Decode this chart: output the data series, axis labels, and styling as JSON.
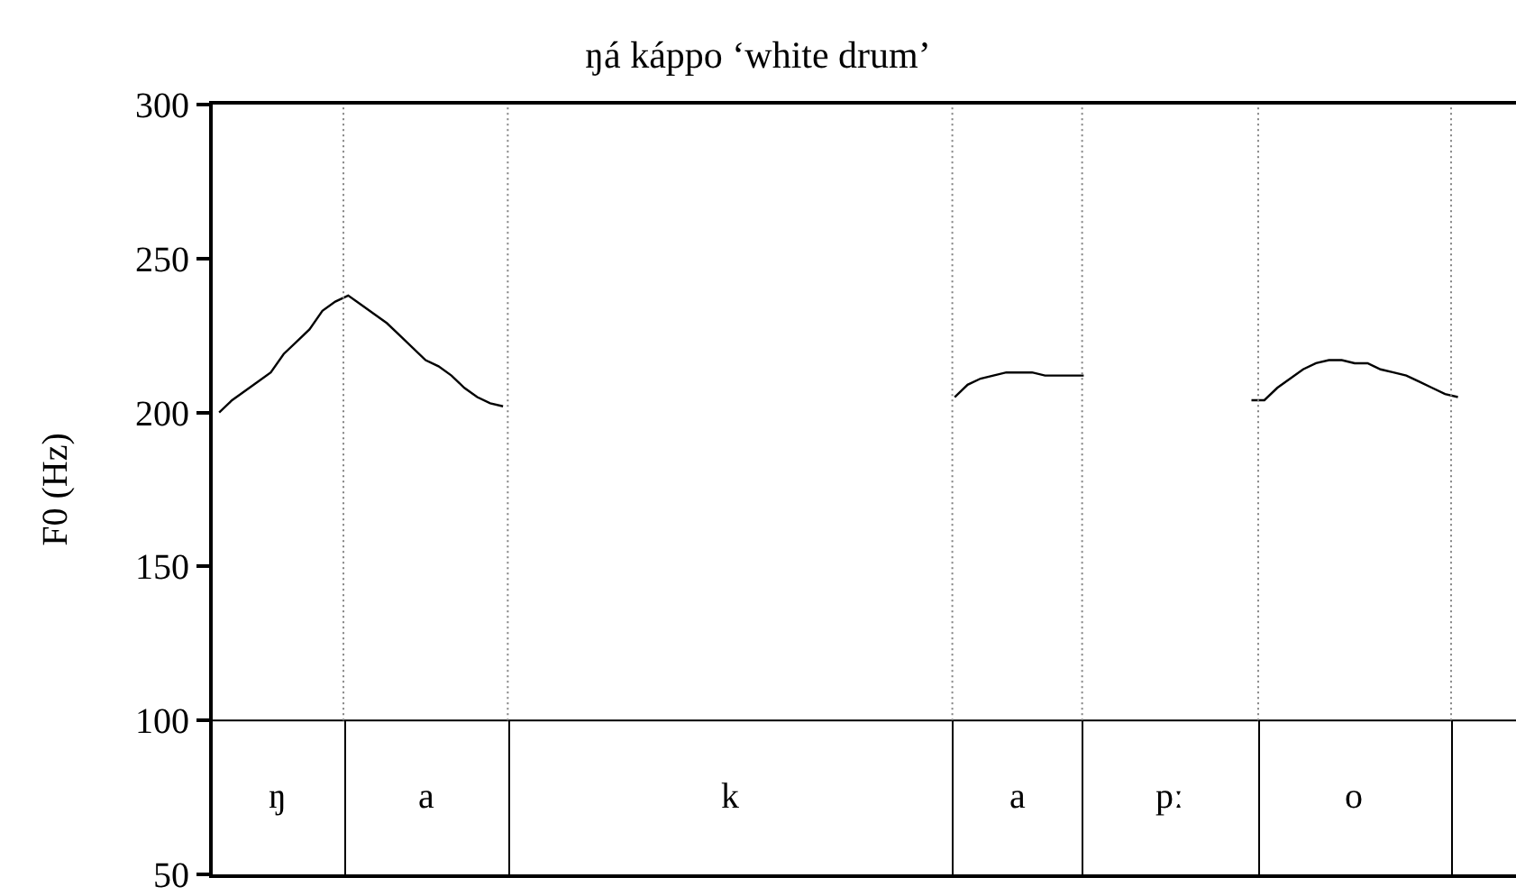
{
  "chart_data": {
    "type": "line",
    "title": "ŋá káppo ‘white drum’",
    "ylabel": "F0 (Hz)",
    "categories": [
      null,
      null,
      null,
      null,
      null,
      null,
      null,
      null,
      null,
      null,
      null,
      null,
      null,
      null,
      null,
      null,
      null,
      null,
      null,
      null,
      null,
      null,
      null,
      null,
      null,
      null,
      null,
      null,
      null,
      null,
      null,
      null,
      null,
      null,
      null,
      null,
      null,
      null,
      null,
      null,
      null,
      null,
      null,
      null,
      null,
      null,
      null,
      null,
      null,
      null,
      null,
      null,
      null,
      null,
      null,
      null,
      null,
      null,
      null,
      null,
      null,
      null,
      null,
      null,
      null,
      null,
      null,
      null,
      null,
      null,
      null,
      null,
      null,
      null,
      null,
      null,
      null,
      null,
      null,
      null,
      null,
      null,
      null,
      null,
      null,
      null,
      null,
      null,
      null,
      null,
      null,
      null,
      null,
      null,
      null,
      null,
      null,
      null,
      null,
      null,
      null
    ],
    "series": [
      {
        "color": "#000000",
        "values": [
          200,
          204,
          207,
          210,
          213,
          219,
          223,
          227,
          233,
          236,
          238,
          235,
          232,
          229,
          225,
          221,
          217,
          215,
          212,
          208,
          205,
          203,
          202,
          null,
          null,
          null,
          null,
          null,
          null,
          null,
          null,
          null,
          null,
          null,
          null,
          null,
          null,
          null,
          null,
          null,
          null,
          null,
          null,
          null,
          null,
          null,
          null,
          null,
          null,
          null,
          null,
          null,
          null,
          null,
          null,
          null,
          null,
          205,
          209,
          211,
          212,
          213,
          213,
          213,
          212,
          212,
          212,
          212,
          null,
          null,
          null,
          null,
          null,
          null,
          null,
          null,
          null,
          null,
          null,
          null,
          204,
          204,
          208,
          211,
          214,
          216,
          217,
          217,
          216,
          216,
          214,
          213,
          212,
          210,
          208,
          206,
          205,
          null,
          null,
          null,
          null
        ]
      }
    ],
    "ylim": [
      50,
      300
    ],
    "yticks": [
      50,
      100,
      150,
      200,
      250,
      300
    ],
    "tick_labels": "y",
    "ref_lines": [
      {
        "axis": "y",
        "value": 100
      }
    ],
    "annotations": [
      "ŋ",
      "a",
      "k",
      "a",
      "pː",
      "o"
    ]
  }
}
